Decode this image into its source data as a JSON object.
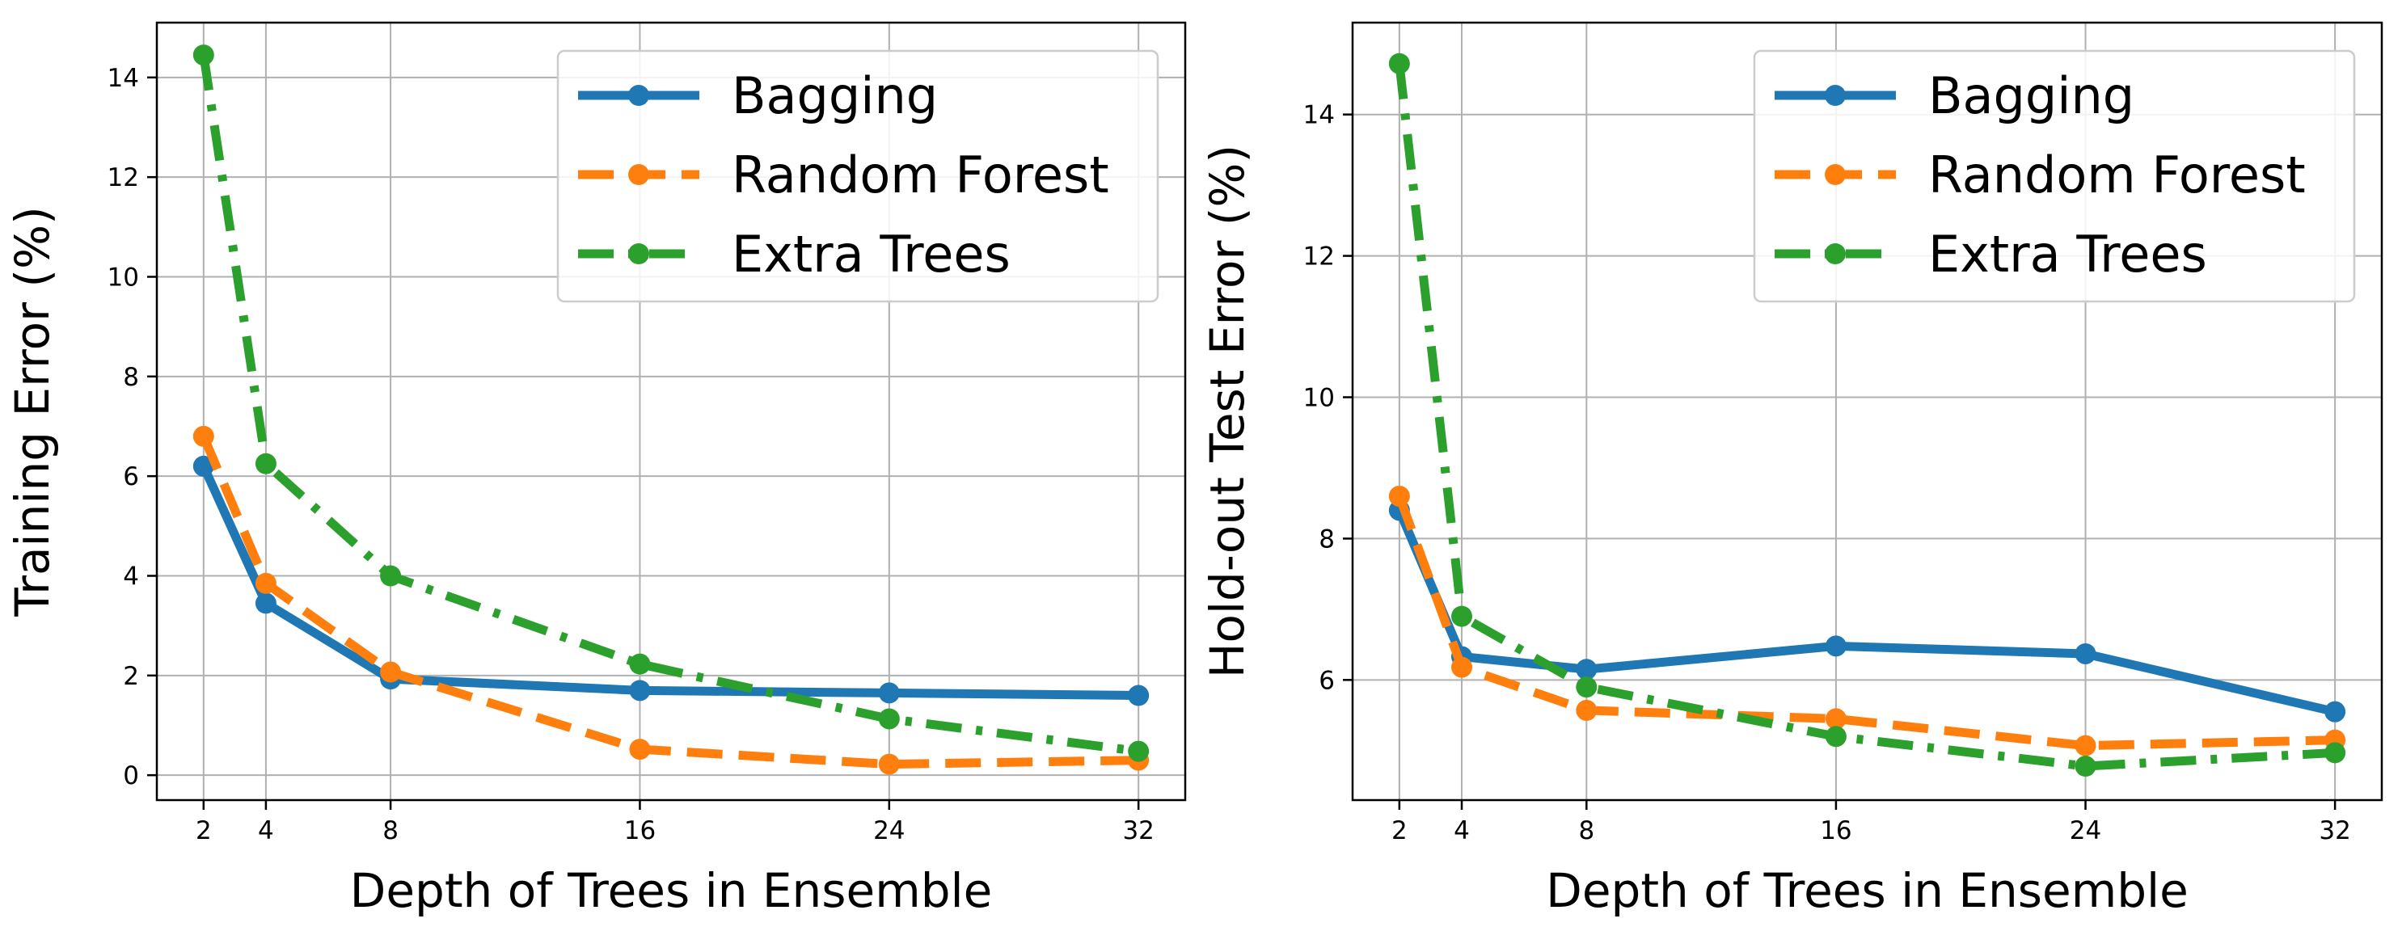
{
  "chart_data": [
    {
      "type": "line",
      "title": "",
      "xlabel": "Depth of Trees in Ensemble",
      "ylabel": "Training Error (%)",
      "x": [
        2,
        4,
        8,
        16,
        24,
        32
      ],
      "xticks": [
        "2",
        "4",
        "8",
        "16",
        "24",
        "32"
      ],
      "xlim": [
        0.5,
        33.5
      ],
      "ylim": [
        -0.5,
        15.1
      ],
      "yticks": [
        0,
        2,
        4,
        6,
        8,
        10,
        12,
        14
      ],
      "ytick_labels": [
        "0",
        "2",
        "4",
        "6",
        "8",
        "10",
        "12",
        "14"
      ],
      "grid": true,
      "legend_position": "upper right",
      "series": [
        {
          "name": "Bagging",
          "color": "#1f77b4",
          "line_style": "solid",
          "values": [
            6.2,
            3.45,
            1.93,
            1.7,
            1.65,
            1.6
          ]
        },
        {
          "name": "Random Forest",
          "color": "#ff7f0e",
          "line_style": "dashed",
          "values": [
            6.8,
            3.85,
            2.07,
            0.52,
            0.22,
            0.3
          ]
        },
        {
          "name": "Extra Trees",
          "color": "#2ca02c",
          "line_style": "dashdot",
          "values": [
            14.45,
            6.25,
            4.0,
            2.23,
            1.13,
            0.48
          ]
        }
      ]
    },
    {
      "type": "line",
      "title": "",
      "xlabel": "Depth of Trees in Ensemble",
      "ylabel": "Hold-out Test Error (%)",
      "x": [
        2,
        4,
        8,
        16,
        24,
        32
      ],
      "xticks": [
        "2",
        "4",
        "8",
        "16",
        "24",
        "32"
      ],
      "xlim": [
        0.5,
        33.5
      ],
      "ylim": [
        4.3,
        15.3
      ],
      "yticks": [
        6,
        8,
        10,
        12,
        14
      ],
      "ytick_labels": [
        "6",
        "8",
        "10",
        "12",
        "14"
      ],
      "grid": true,
      "legend_position": "upper right",
      "series": [
        {
          "name": "Bagging",
          "color": "#1f77b4",
          "line_style": "solid",
          "values": [
            8.4,
            6.33,
            6.15,
            6.48,
            6.37,
            5.55
          ]
        },
        {
          "name": "Random Forest",
          "color": "#ff7f0e",
          "line_style": "dashed",
          "values": [
            8.6,
            6.18,
            5.57,
            5.45,
            5.07,
            5.15
          ]
        },
        {
          "name": "Extra Trees",
          "color": "#2ca02c",
          "line_style": "dashdot",
          "values": [
            14.72,
            6.9,
            5.9,
            5.2,
            4.78,
            4.97
          ]
        }
      ]
    }
  ]
}
